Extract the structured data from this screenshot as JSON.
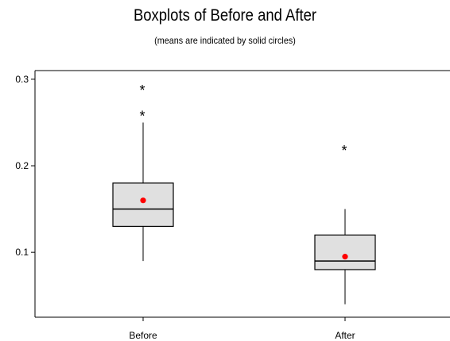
{
  "chart_data": {
    "type": "boxplot",
    "title": "Boxplots of Before and After",
    "subtitle": "(means are indicated by solid circles)",
    "categories": [
      "Before",
      "After"
    ],
    "ylim": [
      0.025,
      0.31
    ],
    "yticks": [
      0.1,
      0.2,
      0.3
    ],
    "ytick_labels": [
      "0.1",
      "0.2",
      "0.3"
    ],
    "grid": false,
    "colors": {
      "box_fill": "#e0e0e0",
      "mean_marker": "#ff0000",
      "line": "#000000"
    },
    "series": [
      {
        "category": "Before",
        "whisker_low": 0.09,
        "q1": 0.13,
        "median": 0.15,
        "q3": 0.18,
        "whisker_high": 0.25,
        "mean": 0.16,
        "outliers": [
          0.26,
          0.29
        ]
      },
      {
        "category": "After",
        "whisker_low": 0.04,
        "q1": 0.08,
        "median": 0.09,
        "q3": 0.12,
        "whisker_high": 0.15,
        "mean": 0.095,
        "outliers": [
          0.22
        ]
      }
    ]
  }
}
